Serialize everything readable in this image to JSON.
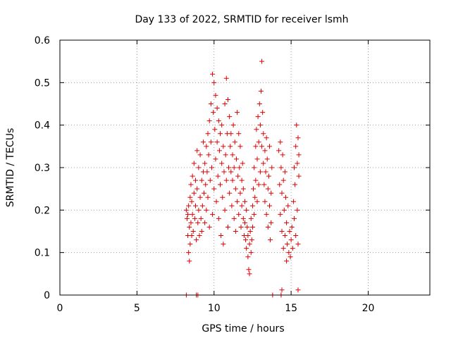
{
  "chart_data": {
    "type": "scatter",
    "title": "Day 133 of 2022, SRMTID for receiver lsmh",
    "xlabel": "GPS time / hours",
    "ylabel": "SRMTID / TECUs",
    "xlim": [
      0,
      24
    ],
    "ylim": [
      0,
      0.6
    ],
    "xticks": [
      0,
      5,
      10,
      15,
      20
    ],
    "xtick_labels": [
      "0",
      "5",
      "10",
      "15",
      "20"
    ],
    "yticks": [
      0,
      0.1,
      0.2,
      0.3,
      0.4,
      0.5,
      0.6
    ],
    "ytick_labels": [
      "0",
      "0.1",
      "0.2",
      "0.3",
      "0.4",
      "0.5",
      "0.6"
    ],
    "grid": true,
    "marker": "+",
    "color": "#e00000",
    "series": [
      {
        "name": "SRMTID",
        "points": [
          [
            8.2,
            0.0
          ],
          [
            8.85,
            0.0
          ],
          [
            8.95,
            0.0
          ],
          [
            14.35,
            0.0
          ],
          [
            13.8,
            0.0
          ],
          [
            14.4,
            0.012
          ],
          [
            15.45,
            0.012
          ],
          [
            8.2,
            0.2
          ],
          [
            8.25,
            0.18
          ],
          [
            8.3,
            0.14
          ],
          [
            8.3,
            0.19
          ],
          [
            8.35,
            0.1
          ],
          [
            8.35,
            0.21
          ],
          [
            8.4,
            0.08
          ],
          [
            8.4,
            0.16
          ],
          [
            8.45,
            0.12
          ],
          [
            8.45,
            0.23
          ],
          [
            8.5,
            0.17
          ],
          [
            8.5,
            0.26
          ],
          [
            8.55,
            0.14
          ],
          [
            8.55,
            0.22
          ],
          [
            8.6,
            0.19
          ],
          [
            8.6,
            0.28
          ],
          [
            8.65,
            0.15
          ],
          [
            8.7,
            0.24
          ],
          [
            8.7,
            0.31
          ],
          [
            8.75,
            0.18
          ],
          [
            8.8,
            0.21
          ],
          [
            8.8,
            0.27
          ],
          [
            8.85,
            0.13
          ],
          [
            8.9,
            0.25
          ],
          [
            8.9,
            0.34
          ],
          [
            8.95,
            0.17
          ],
          [
            9.0,
            0.2
          ],
          [
            9.0,
            0.3
          ],
          [
            9.05,
            0.14
          ],
          [
            9.1,
            0.23
          ],
          [
            9.1,
            0.33
          ],
          [
            9.15,
            0.18
          ],
          [
            9.2,
            0.27
          ],
          [
            9.2,
            0.15
          ],
          [
            9.25,
            0.21
          ],
          [
            9.3,
            0.29
          ],
          [
            9.3,
            0.36
          ],
          [
            9.35,
            0.24
          ],
          [
            9.4,
            0.17
          ],
          [
            9.4,
            0.31
          ],
          [
            9.45,
            0.26
          ],
          [
            9.5,
            0.2
          ],
          [
            9.5,
            0.35
          ],
          [
            9.55,
            0.29
          ],
          [
            9.6,
            0.38
          ],
          [
            9.6,
            0.23
          ],
          [
            9.65,
            0.33
          ],
          [
            9.7,
            0.41
          ],
          [
            9.7,
            0.16
          ],
          [
            9.75,
            0.27
          ],
          [
            9.8,
            0.45
          ],
          [
            9.8,
            0.36
          ],
          [
            9.85,
            0.3
          ],
          [
            9.9,
            0.52
          ],
          [
            9.9,
            0.19
          ],
          [
            9.95,
            0.43
          ],
          [
            10.0,
            0.5
          ],
          [
            10.0,
            0.25
          ],
          [
            10.05,
            0.39
          ],
          [
            10.1,
            0.47
          ],
          [
            10.1,
            0.32
          ],
          [
            10.15,
            0.22
          ],
          [
            10.2,
            0.36
          ],
          [
            10.2,
            0.44
          ],
          [
            10.25,
            0.28
          ],
          [
            10.3,
            0.41
          ],
          [
            10.3,
            0.18
          ],
          [
            10.35,
            0.34
          ],
          [
            10.4,
            0.26
          ],
          [
            10.4,
            0.38
          ],
          [
            10.45,
            0.14
          ],
          [
            10.5,
            0.31
          ],
          [
            10.5,
            0.4
          ],
          [
            10.55,
            0.23
          ],
          [
            10.6,
            0.35
          ],
          [
            10.6,
            0.12
          ],
          [
            10.65,
            0.29
          ],
          [
            10.7,
            0.45
          ],
          [
            10.7,
            0.2
          ],
          [
            10.75,
            0.33
          ],
          [
            10.8,
            0.51
          ],
          [
            10.8,
            0.27
          ],
          [
            10.85,
            0.38
          ],
          [
            10.9,
            0.46
          ],
          [
            10.9,
            0.16
          ],
          [
            10.95,
            0.3
          ],
          [
            11.0,
            0.42
          ],
          [
            11.0,
            0.24
          ],
          [
            11.05,
            0.35
          ],
          [
            11.1,
            0.29
          ],
          [
            11.1,
            0.38
          ],
          [
            11.15,
            0.21
          ],
          [
            11.2,
            0.33
          ],
          [
            11.2,
            0.27
          ],
          [
            11.25,
            0.4
          ],
          [
            11.3,
            0.18
          ],
          [
            11.3,
            0.3
          ],
          [
            11.35,
            0.36
          ],
          [
            11.4,
            0.25
          ],
          [
            11.4,
            0.15
          ],
          [
            11.45,
            0.32
          ],
          [
            11.5,
            0.43
          ],
          [
            11.5,
            0.22
          ],
          [
            11.55,
            0.28
          ],
          [
            11.6,
            0.38
          ],
          [
            11.6,
            0.19
          ],
          [
            11.65,
            0.3
          ],
          [
            11.7,
            0.24
          ],
          [
            11.7,
            0.35
          ],
          [
            11.75,
            0.16
          ],
          [
            11.8,
            0.27
          ],
          [
            11.8,
            0.21
          ],
          [
            11.85,
            0.31
          ],
          [
            11.9,
            0.18
          ],
          [
            11.9,
            0.25
          ],
          [
            11.95,
            0.14
          ],
          [
            12.0,
            0.22
          ],
          [
            12.0,
            0.17
          ],
          [
            12.05,
            0.13
          ],
          [
            12.1,
            0.2
          ],
          [
            12.1,
            0.11
          ],
          [
            12.15,
            0.16
          ],
          [
            12.2,
            0.09
          ],
          [
            12.2,
            0.14
          ],
          [
            12.25,
            0.06
          ],
          [
            12.3,
            0.12
          ],
          [
            12.3,
            0.05
          ],
          [
            12.35,
            0.15
          ],
          [
            12.4,
            0.1
          ],
          [
            12.4,
            0.18
          ],
          [
            12.45,
            0.13
          ],
          [
            12.5,
            0.21
          ],
          [
            12.5,
            0.16
          ],
          [
            12.55,
            0.25
          ],
          [
            12.6,
            0.19
          ],
          [
            12.6,
            0.3
          ],
          [
            12.65,
            0.23
          ],
          [
            12.7,
            0.35
          ],
          [
            12.7,
            0.27
          ],
          [
            12.75,
            0.39
          ],
          [
            12.8,
            0.32
          ],
          [
            12.8,
            0.22
          ],
          [
            12.85,
            0.42
          ],
          [
            12.9,
            0.36
          ],
          [
            12.9,
            0.26
          ],
          [
            12.95,
            0.45
          ],
          [
            13.0,
            0.4
          ],
          [
            13.0,
            0.29
          ],
          [
            13.05,
            0.48
          ],
          [
            13.1,
            0.35
          ],
          [
            13.1,
            0.55
          ],
          [
            13.15,
            0.43
          ],
          [
            13.2,
            0.31
          ],
          [
            13.2,
            0.38
          ],
          [
            13.25,
            0.26
          ],
          [
            13.3,
            0.34
          ],
          [
            13.3,
            0.22
          ],
          [
            13.35,
            0.29
          ],
          [
            13.4,
            0.37
          ],
          [
            13.4,
            0.19
          ],
          [
            13.45,
            0.32
          ],
          [
            13.5,
            0.25
          ],
          [
            13.5,
            0.16
          ],
          [
            13.55,
            0.28
          ],
          [
            13.6,
            0.21
          ],
          [
            13.6,
            0.35
          ],
          [
            13.65,
            0.13
          ],
          [
            13.7,
            0.24
          ],
          [
            13.7,
            0.17
          ],
          [
            13.75,
            0.3
          ],
          [
            14.2,
            0.34
          ],
          [
            14.25,
            0.26
          ],
          [
            14.3,
            0.36
          ],
          [
            14.3,
            0.19
          ],
          [
            14.35,
            0.3
          ],
          [
            14.4,
            0.24
          ],
          [
            14.4,
            0.15
          ],
          [
            14.45,
            0.33
          ],
          [
            14.5,
            0.11
          ],
          [
            14.5,
            0.27
          ],
          [
            14.55,
            0.2
          ],
          [
            14.6,
            0.29
          ],
          [
            14.6,
            0.14
          ],
          [
            14.65,
            0.23
          ],
          [
            14.7,
            0.08
          ],
          [
            14.7,
            0.17
          ],
          [
            14.75,
            0.12
          ],
          [
            14.8,
            0.21
          ],
          [
            14.85,
            0.1
          ],
          [
            14.9,
            0.15
          ],
          [
            14.95,
            0.09
          ],
          [
            15.0,
            0.13
          ],
          [
            15.05,
            0.16
          ],
          [
            15.1,
            0.11
          ],
          [
            15.15,
            0.22
          ],
          [
            15.2,
            0.18
          ],
          [
            15.2,
            0.3
          ],
          [
            15.25,
            0.26
          ],
          [
            15.3,
            0.35
          ],
          [
            15.3,
            0.14
          ],
          [
            15.35,
            0.4
          ],
          [
            15.4,
            0.31
          ],
          [
            15.4,
            0.2
          ],
          [
            15.45,
            0.37
          ],
          [
            15.45,
            0.12
          ],
          [
            15.5,
            0.28
          ],
          [
            15.5,
            0.33
          ]
        ]
      }
    ]
  }
}
